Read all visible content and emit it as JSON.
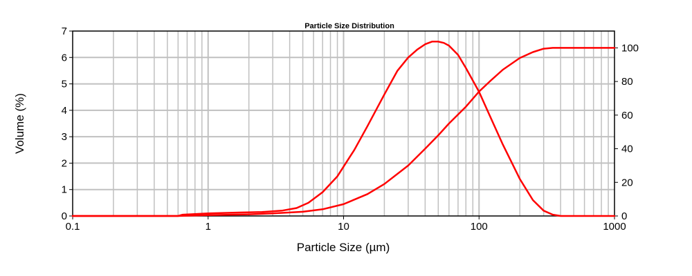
{
  "chart_data": {
    "type": "line",
    "title": "Particle Size Distribution",
    "xlabel": "Particle Size (µm)",
    "ylabel": "Volume (%)",
    "y2label": "",
    "x_scale": "log",
    "xlim": [
      0.1,
      1000
    ],
    "ylim": [
      0,
      7
    ],
    "y2lim": [
      0,
      110
    ],
    "x_ticks": [
      0.1,
      1,
      10,
      100,
      1000
    ],
    "x_tick_labels": [
      "0.1",
      "1",
      "10",
      "100",
      "1000"
    ],
    "y_ticks": [
      0,
      1,
      2,
      3,
      4,
      5,
      6,
      7
    ],
    "y_tick_labels": [
      "0",
      "1",
      "2",
      "3",
      "4",
      "5",
      "6",
      "7"
    ],
    "y2_ticks": [
      0,
      20,
      40,
      60,
      80,
      100
    ],
    "y2_tick_labels": [
      "0",
      "20",
      "40",
      "60",
      "80",
      "100"
    ],
    "grid": true,
    "line_color": "#ff0000",
    "grid_color": "#c0c0c0",
    "series": [
      {
        "axis": "left",
        "x": [
          0.1,
          0.6,
          0.65,
          1.0,
          1.7,
          2.5,
          3.5,
          4.5,
          5.5,
          7,
          9,
          12,
          15,
          20,
          25,
          30,
          35,
          40,
          45,
          50,
          55,
          60,
          70,
          80,
          100,
          120,
          150,
          200,
          250,
          300,
          350,
          400,
          500,
          1000
        ],
        "values": [
          0,
          0,
          0.05,
          0.1,
          0.13,
          0.15,
          0.2,
          0.3,
          0.5,
          0.9,
          1.5,
          2.5,
          3.4,
          4.6,
          5.5,
          6.0,
          6.3,
          6.5,
          6.6,
          6.6,
          6.55,
          6.45,
          6.1,
          5.6,
          4.7,
          3.8,
          2.7,
          1.4,
          0.6,
          0.2,
          0.05,
          0,
          0,
          0
        ]
      },
      {
        "axis": "right",
        "x": [
          0.1,
          0.6,
          1.0,
          2.0,
          3.0,
          5.0,
          7.0,
          10,
          15,
          20,
          30,
          40,
          50,
          60,
          80,
          100,
          120,
          150,
          200,
          250,
          300,
          350,
          400,
          1000
        ],
        "values": [
          0,
          0,
          0.5,
          1.0,
          1.5,
          2.5,
          4.0,
          7.0,
          13,
          19,
          30,
          40,
          48,
          55,
          65,
          74,
          80,
          87,
          94,
          97.5,
          99.5,
          100,
          100,
          100
        ]
      }
    ]
  }
}
